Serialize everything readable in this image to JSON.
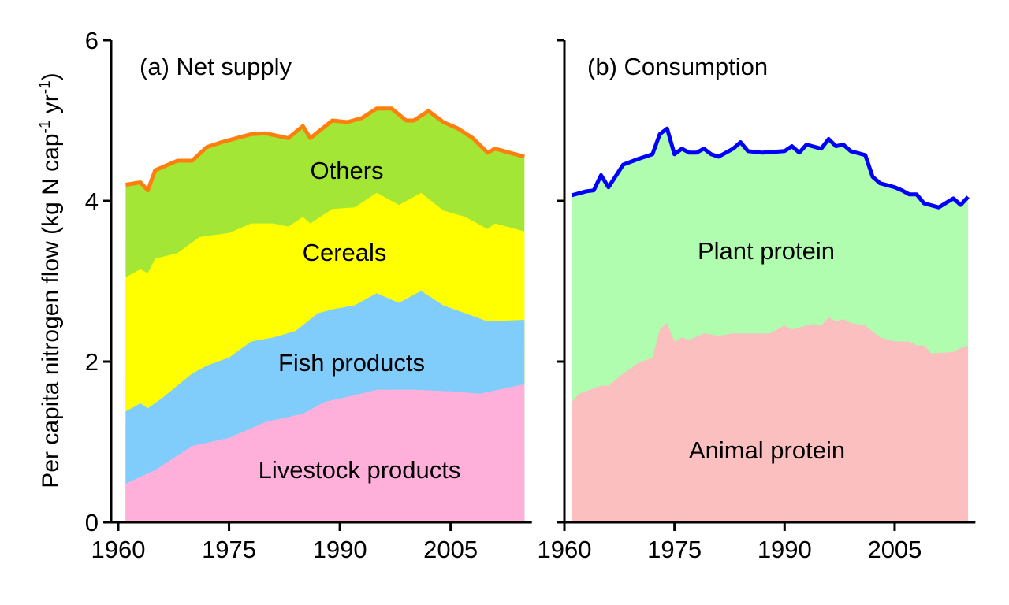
{
  "chart_data": [
    {
      "type": "area",
      "title": "(a) Net supply",
      "stacked": true,
      "xlim": [
        1960,
        2016
      ],
      "ylim": [
        0,
        6
      ],
      "xticks": [
        "1960",
        "1975",
        "1990",
        "2005"
      ],
      "yticks": [
        "0",
        "2",
        "4",
        "6"
      ],
      "ylabel": "Per capita nitrogen flow (kg N cap",
      "ylabel_sup1": "-1",
      "ylabel_mid": " yr",
      "ylabel_sup2": "-1",
      "ylabel_end": ")",
      "note": "values are cumulative stack tops",
      "series": [
        {
          "name": "Livestock products",
          "color": "#FFB0DA",
          "x": [
            1961,
            1965,
            1970,
            1975,
            1980,
            1985,
            1988,
            1992,
            1995,
            2000,
            2005,
            2009,
            2015
          ],
          "top": [
            0.48,
            0.65,
            0.95,
            1.05,
            1.25,
            1.35,
            1.5,
            1.58,
            1.65,
            1.65,
            1.63,
            1.6,
            1.72
          ]
        },
        {
          "name": "Fish products",
          "color": "#80CDFC",
          "x": [
            1961,
            1963,
            1964,
            1966,
            1970,
            1972,
            1975,
            1978,
            1981,
            1984,
            1987,
            1989,
            1992,
            1995,
            1998,
            2001,
            2004,
            2007,
            2010,
            2015
          ],
          "top": [
            1.38,
            1.48,
            1.42,
            1.55,
            1.85,
            1.95,
            2.05,
            2.25,
            2.3,
            2.38,
            2.6,
            2.65,
            2.7,
            2.85,
            2.73,
            2.88,
            2.7,
            2.6,
            2.5,
            2.52
          ]
        },
        {
          "name": "Cereals",
          "color": "#FFFF00",
          "x": [
            1961,
            1963,
            1964,
            1965,
            1968,
            1971,
            1975,
            1978,
            1981,
            1983,
            1985,
            1986,
            1989,
            1992,
            1995,
            1998,
            2001,
            2004,
            2007,
            2010,
            2011,
            2015
          ],
          "top": [
            3.05,
            3.15,
            3.1,
            3.28,
            3.35,
            3.55,
            3.6,
            3.72,
            3.72,
            3.68,
            3.8,
            3.72,
            3.9,
            3.92,
            4.1,
            3.95,
            4.1,
            3.88,
            3.8,
            3.65,
            3.72,
            3.62
          ]
        },
        {
          "name": "Others",
          "color": "#A3E635",
          "x": [
            1961,
            1963,
            1964,
            1965,
            1968,
            1970,
            1972,
            1974,
            1978,
            1980,
            1983,
            1985,
            1986,
            1989,
            1991,
            1993,
            1995,
            1997,
            1999,
            2000,
            2002,
            2004,
            2006,
            2008,
            2010,
            2011,
            2013,
            2015
          ],
          "top": [
            4.2,
            4.23,
            4.13,
            4.38,
            4.5,
            4.5,
            4.67,
            4.73,
            4.83,
            4.84,
            4.78,
            4.93,
            4.78,
            5.0,
            4.98,
            5.03,
            5.15,
            5.15,
            5.0,
            5.0,
            5.12,
            4.98,
            4.9,
            4.78,
            4.6,
            4.65,
            4.6,
            4.55
          ]
        }
      ],
      "total_line_color": "#FF7F0E"
    },
    {
      "type": "area",
      "title": "(b) Consumption",
      "stacked": true,
      "xlim": [
        1960,
        2016
      ],
      "ylim": [
        0,
        6
      ],
      "xticks": [
        "1960",
        "1975",
        "1990",
        "2005"
      ],
      "series": [
        {
          "name": "Animal protein",
          "color": "#FBBFBF",
          "x": [
            1961,
            1962,
            1965,
            1966,
            1968,
            1970,
            1972,
            1973,
            1974,
            1975,
            1976,
            1977,
            1979,
            1981,
            1983,
            1985,
            1988,
            1990,
            1991,
            1993,
            1995,
            1996,
            1997,
            1998,
            1999,
            2001,
            2003,
            2005,
            2007,
            2008,
            2009,
            2010,
            2013,
            2014,
            2015
          ],
          "top": [
            1.5,
            1.6,
            1.7,
            1.7,
            1.85,
            1.98,
            2.05,
            2.4,
            2.48,
            2.25,
            2.3,
            2.27,
            2.35,
            2.32,
            2.35,
            2.35,
            2.35,
            2.45,
            2.4,
            2.45,
            2.45,
            2.55,
            2.5,
            2.53,
            2.48,
            2.45,
            2.3,
            2.25,
            2.25,
            2.2,
            2.2,
            2.1,
            2.12,
            2.17,
            2.2
          ]
        },
        {
          "name": "Plant protein",
          "color": "#B0FDB0",
          "x": [
            1961,
            1963,
            1964,
            1965,
            1966,
            1968,
            1970,
            1971,
            1972,
            1973,
            1974,
            1975,
            1976,
            1977,
            1978,
            1979,
            1980,
            1981,
            1983,
            1984,
            1985,
            1987,
            1990,
            1991,
            1992,
            1993,
            1995,
            1996,
            1997,
            1998,
            1999,
            2001,
            2002,
            2003,
            2005,
            2006,
            2007,
            2008,
            2009,
            2011,
            2013,
            2014,
            2015
          ],
          "top": [
            4.07,
            4.12,
            4.13,
            4.32,
            4.17,
            4.45,
            4.52,
            4.55,
            4.58,
            4.83,
            4.9,
            4.58,
            4.65,
            4.6,
            4.6,
            4.65,
            4.58,
            4.55,
            4.65,
            4.73,
            4.62,
            4.6,
            4.62,
            4.68,
            4.6,
            4.7,
            4.65,
            4.77,
            4.68,
            4.7,
            4.62,
            4.57,
            4.3,
            4.22,
            4.17,
            4.13,
            4.08,
            4.08,
            3.97,
            3.92,
            4.03,
            3.95,
            4.05
          ]
        }
      ],
      "total_line_color": "#0000FF"
    }
  ]
}
